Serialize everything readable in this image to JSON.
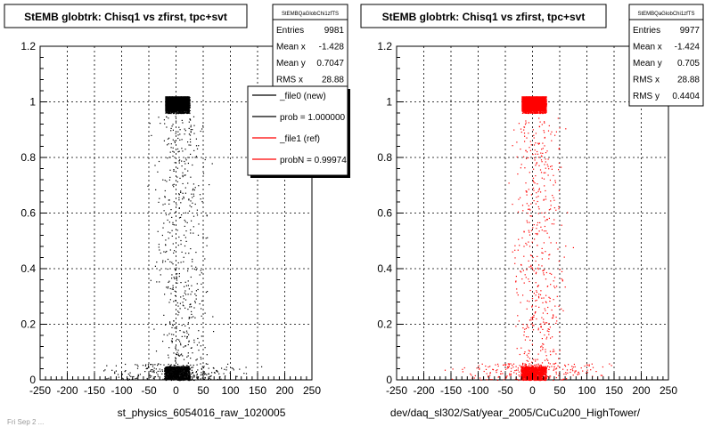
{
  "footer_text": "Fri Sep  2 ...",
  "chart_data": [
    {
      "type": "scatter",
      "title": "StEMB globtrk: Chisq1 vs zfirst, tpc+svt",
      "xlabel": "st_physics_6054016_raw_1020005",
      "ylabel": "",
      "xlim": [
        -250,
        250
      ],
      "ylim": [
        0,
        1.2
      ],
      "xticks": [
        "-250",
        "-200",
        "-150",
        "-100",
        "-50",
        "0",
        "50",
        "100",
        "150",
        "200",
        "250"
      ],
      "yticks": [
        "0",
        "0.2",
        "0.4",
        "0.6",
        "0.8",
        "1",
        "1.2"
      ],
      "grid": true,
      "marker_color": "#000000",
      "stats": {
        "name": "StEMBQaGlobChi1zfTS",
        "rows": [
          {
            "label": "Entries",
            "value": "9981"
          },
          {
            "label": "Mean x",
            "value": "-1.428"
          },
          {
            "label": "Mean y",
            "value": "0.7047"
          },
          {
            "label": "RMS x",
            "value": "28.88"
          }
        ]
      },
      "legend": {
        "placement": "top-right",
        "entries": [
          {
            "label": "_file0 (new)",
            "color": "#000000"
          },
          {
            "label": "prob = 1.000000",
            "color": "#000000"
          },
          {
            "label": "_file1 (ref)",
            "color": "#ff0000"
          },
          {
            "label": "probN = 0.99974",
            "color": "#ff0000"
          }
        ]
      },
      "clusters": [
        {
          "x": [
            -20,
            25
          ],
          "y": [
            0.96,
            1.02
          ],
          "weight": "dense"
        },
        {
          "x": [
            -22,
            25
          ],
          "y": [
            0.0,
            0.05
          ],
          "weight": "dense"
        },
        {
          "x": [
            -60,
            80
          ],
          "y": [
            0.05,
            0.95
          ],
          "weight": "sparse"
        },
        {
          "x": [
            -170,
            170
          ],
          "y": [
            0.0,
            0.06
          ],
          "weight": "sparse"
        }
      ]
    },
    {
      "type": "scatter",
      "title": "StEMB globtrk: Chisq1 vs zfirst, tpc+svt",
      "xlabel": "dev/daq_sl302/Sat/year_2005/CuCu200_HighTower/",
      "ylabel": "",
      "xlim": [
        -250,
        250
      ],
      "ylim": [
        0,
        1.2
      ],
      "xticks": [
        "-250",
        "-200",
        "-150",
        "-100",
        "-50",
        "0",
        "50",
        "100",
        "150",
        "200",
        "250"
      ],
      "yticks": [
        "0",
        "0.2",
        "0.4",
        "0.6",
        "0.8",
        "1",
        "1.2"
      ],
      "grid": true,
      "marker_color": "#ff0000",
      "stats": {
        "name": "StEMBQaGlobChi1zfTS",
        "rows": [
          {
            "label": "Entries",
            "value": "9977"
          },
          {
            "label": "Mean x",
            "value": "-1.424"
          },
          {
            "label": "Mean y",
            "value": "0.705"
          },
          {
            "label": "RMS x",
            "value": "28.88"
          },
          {
            "label": "RMS y",
            "value": "0.4404"
          }
        ]
      },
      "clusters": [
        {
          "x": [
            -20,
            25
          ],
          "y": [
            0.96,
            1.02
          ],
          "weight": "dense"
        },
        {
          "x": [
            -22,
            25
          ],
          "y": [
            0.0,
            0.05
          ],
          "weight": "dense"
        },
        {
          "x": [
            -60,
            80
          ],
          "y": [
            0.05,
            0.95
          ],
          "weight": "sparse"
        },
        {
          "x": [
            -170,
            170
          ],
          "y": [
            0.0,
            0.06
          ],
          "weight": "sparse"
        }
      ]
    }
  ]
}
